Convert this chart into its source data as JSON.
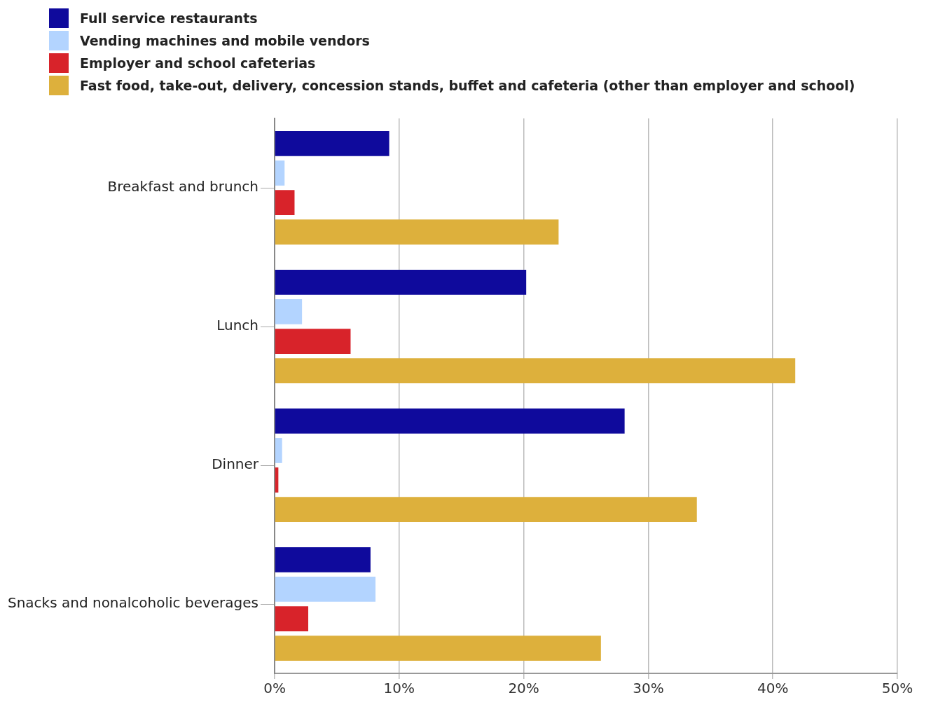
{
  "chart_data": {
    "type": "bar",
    "orientation": "horizontal",
    "categories": [
      "Breakfast and brunch",
      "Lunch",
      "Dinner",
      "Snacks and nonalcoholic beverages"
    ],
    "series": [
      {
        "name": "Full service restaurants",
        "color": "#0f0a9c",
        "values": [
          9.2,
          20.2,
          28.1,
          7.7
        ]
      },
      {
        "name": "Vending machines and mobile vendors",
        "color": "#b3d4ff",
        "values": [
          0.8,
          2.2,
          0.6,
          8.1
        ]
      },
      {
        "name": "Employer and school cafeterias",
        "color": "#d8232a",
        "values": [
          1.6,
          6.1,
          0.3,
          2.7
        ]
      },
      {
        "name": "Fast food, take-out, delivery, concession stands, buffet and cafeteria (other than employer and school)",
        "color": "#ddb03c",
        "values": [
          22.8,
          41.8,
          33.9,
          26.2
        ]
      }
    ],
    "xlim": [
      0,
      50
    ],
    "xticks": [
      {
        "value": 0,
        "label": "0%"
      },
      {
        "value": 10,
        "label": "10%"
      },
      {
        "value": 20,
        "label": "20%"
      },
      {
        "value": 30,
        "label": "30%"
      },
      {
        "value": 40,
        "label": "40%"
      },
      {
        "value": 50,
        "label": "50%"
      }
    ],
    "grid": "x",
    "legend": "top left"
  }
}
